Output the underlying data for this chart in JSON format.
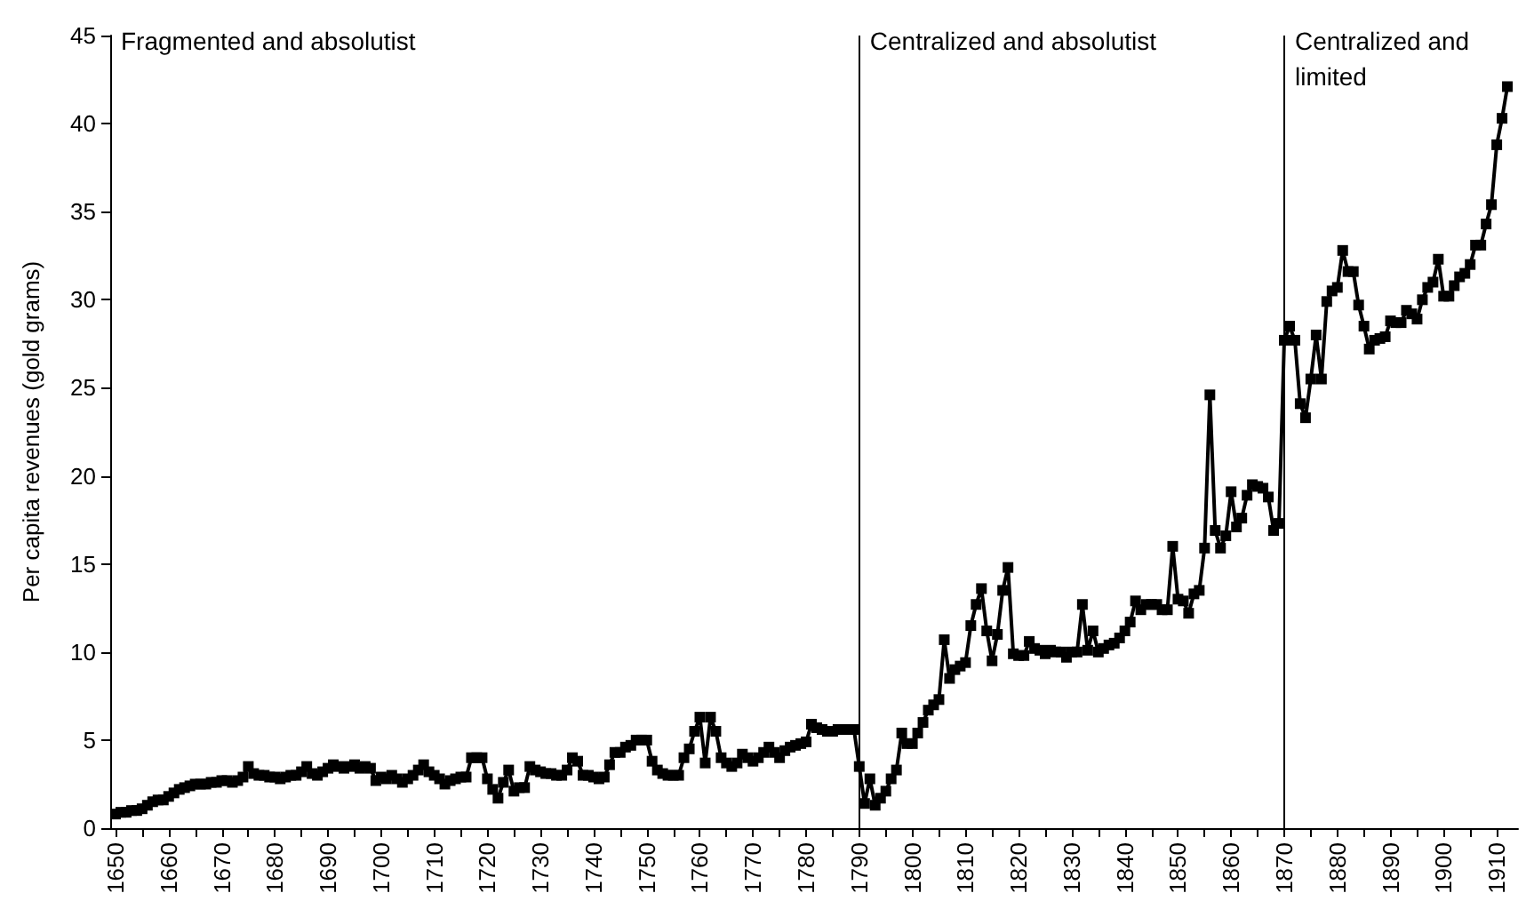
{
  "chart_data": {
    "type": "line",
    "ylabel": "Per capita revenues (gold grams)",
    "annotations": [
      "Fragmented and absolutist",
      "Centralized and absolutist",
      "Centralized and limited"
    ],
    "x": [
      1650,
      1651,
      1652,
      1653,
      1654,
      1655,
      1656,
      1657,
      1658,
      1659,
      1660,
      1661,
      1662,
      1663,
      1664,
      1665,
      1666,
      1667,
      1668,
      1669,
      1670,
      1671,
      1672,
      1673,
      1674,
      1675,
      1676,
      1677,
      1678,
      1679,
      1680,
      1681,
      1682,
      1683,
      1684,
      1685,
      1686,
      1687,
      1688,
      1689,
      1690,
      1691,
      1692,
      1693,
      1694,
      1695,
      1696,
      1697,
      1698,
      1699,
      1700,
      1701,
      1702,
      1703,
      1704,
      1705,
      1706,
      1707,
      1708,
      1709,
      1710,
      1711,
      1712,
      1713,
      1714,
      1715,
      1716,
      1717,
      1718,
      1719,
      1720,
      1721,
      1722,
      1723,
      1724,
      1725,
      1726,
      1727,
      1728,
      1729,
      1730,
      1731,
      1732,
      1733,
      1734,
      1735,
      1736,
      1737,
      1738,
      1739,
      1740,
      1741,
      1742,
      1743,
      1744,
      1745,
      1746,
      1747,
      1748,
      1749,
      1750,
      1751,
      1752,
      1753,
      1754,
      1755,
      1756,
      1757,
      1758,
      1759,
      1760,
      1761,
      1762,
      1763,
      1764,
      1765,
      1766,
      1767,
      1768,
      1769,
      1770,
      1771,
      1772,
      1773,
      1774,
      1775,
      1776,
      1777,
      1778,
      1779,
      1780,
      1781,
      1782,
      1783,
      1784,
      1785,
      1786,
      1787,
      1788,
      1789,
      1790,
      1791,
      1792,
      1793,
      1794,
      1795,
      1796,
      1797,
      1798,
      1799,
      1800,
      1801,
      1802,
      1803,
      1804,
      1805,
      1806,
      1807,
      1808,
      1809,
      1810,
      1811,
      1812,
      1813,
      1814,
      1815,
      1816,
      1817,
      1818,
      1819,
      1820,
      1821,
      1822,
      1823,
      1824,
      1825,
      1826,
      1827,
      1828,
      1829,
      1830,
      1831,
      1832,
      1833,
      1834,
      1835,
      1836,
      1837,
      1838,
      1839,
      1840,
      1841,
      1842,
      1843,
      1844,
      1845,
      1846,
      1847,
      1848,
      1849,
      1850,
      1851,
      1852,
      1853,
      1854,
      1855,
      1856,
      1857,
      1858,
      1859,
      1860,
      1861,
      1862,
      1863,
      1864,
      1865,
      1866,
      1867,
      1868,
      1869,
      1870,
      1871,
      1872,
      1873,
      1874,
      1875,
      1876,
      1877,
      1878,
      1879,
      1880,
      1881,
      1882,
      1883,
      1884,
      1885,
      1886,
      1887,
      1888,
      1889,
      1890,
      1891,
      1892,
      1893,
      1894,
      1895,
      1896,
      1897,
      1898,
      1899,
      1900,
      1901,
      1902,
      1903,
      1904,
      1905,
      1906,
      1907,
      1908,
      1909,
      1910,
      1911,
      1912
    ],
    "series": [
      {
        "color": "#000000",
        "values": [
          0.8,
          0.9,
          0.9,
          1.0,
          1.0,
          1.1,
          1.3,
          1.5,
          1.6,
          1.6,
          1.8,
          2.0,
          2.2,
          2.3,
          2.4,
          2.5,
          2.5,
          2.5,
          2.6,
          2.6,
          2.7,
          2.7,
          2.6,
          2.7,
          2.9,
          3.5,
          3.1,
          3.0,
          3.0,
          2.9,
          2.9,
          2.8,
          2.9,
          3.0,
          3.0,
          3.2,
          3.5,
          3.1,
          3.0,
          3.2,
          3.4,
          3.6,
          3.5,
          3.4,
          3.5,
          3.6,
          3.4,
          3.5,
          3.4,
          2.7,
          2.9,
          2.8,
          3.0,
          2.8,
          2.6,
          2.8,
          3.0,
          3.3,
          3.6,
          3.2,
          3.0,
          2.8,
          2.5,
          2.7,
          2.8,
          2.9,
          2.9,
          4.0,
          4.0,
          4.0,
          2.8,
          2.2,
          1.7,
          2.6,
          3.3,
          2.1,
          2.3,
          2.3,
          3.5,
          3.3,
          3.2,
          3.1,
          3.1,
          3.0,
          3.0,
          3.3,
          4.0,
          3.8,
          3.0,
          3.0,
          2.9,
          2.8,
          2.9,
          3.6,
          4.3,
          4.3,
          4.6,
          4.7,
          5.0,
          5.0,
          5.0,
          3.8,
          3.3,
          3.1,
          3.0,
          3.0,
          3.0,
          4.0,
          4.5,
          5.5,
          6.3,
          3.7,
          6.3,
          5.5,
          4.0,
          3.7,
          3.5,
          3.7,
          4.2,
          4.0,
          3.8,
          4.0,
          4.3,
          4.6,
          4.3,
          4.0,
          4.4,
          4.6,
          4.7,
          4.8,
          4.9,
          5.9,
          5.7,
          5.6,
          5.5,
          5.5,
          5.6,
          5.6,
          5.6,
          5.6,
          3.5,
          1.4,
          2.8,
          1.3,
          1.7,
          2.1,
          2.8,
          3.3,
          5.4,
          4.8,
          4.8,
          5.4,
          6.0,
          6.7,
          7.0,
          7.3,
          10.7,
          8.5,
          9.0,
          9.2,
          9.4,
          11.5,
          12.7,
          13.6,
          11.2,
          9.5,
          11.0,
          13.5,
          14.8,
          9.9,
          9.8,
          9.8,
          10.6,
          10.2,
          10.1,
          9.9,
          10.1,
          10.0,
          10.0,
          9.7,
          10.0,
          10.0,
          12.7,
          10.1,
          11.2,
          10.0,
          10.2,
          10.4,
          10.5,
          10.8,
          11.2,
          11.7,
          12.9,
          12.4,
          12.7,
          12.7,
          12.7,
          12.4,
          12.4,
          16.0,
          13.0,
          12.9,
          12.2,
          13.3,
          13.5,
          15.9,
          24.6,
          16.9,
          15.9,
          16.6,
          19.1,
          17.1,
          17.6,
          18.9,
          19.5,
          19.4,
          19.3,
          18.8,
          16.9,
          17.3,
          27.7,
          28.5,
          27.7,
          24.1,
          23.3,
          25.5,
          28.0,
          25.5,
          29.9,
          30.5,
          30.7,
          32.8,
          31.6,
          31.6,
          29.7,
          28.5,
          27.2,
          27.7,
          27.8,
          27.9,
          28.8,
          28.7,
          28.7,
          29.4,
          29.2,
          28.9,
          30.0,
          30.7,
          31.0,
          32.3,
          30.2,
          30.2,
          30.8,
          31.3,
          31.5,
          32.0,
          33.1,
          33.1,
          34.3,
          35.4,
          38.8,
          40.3,
          42.1
        ]
      }
    ],
    "xlim": [
      1649,
      1914
    ],
    "xticks": [
      1650,
      {
        "value": 1655,
        "label": null
      },
      1660,
      {
        "value": 1665,
        "label": null
      },
      1670,
      {
        "value": 1675,
        "label": null
      },
      1680,
      {
        "value": 1685,
        "label": null
      },
      1690,
      {
        "value": 1695,
        "label": null
      },
      1700,
      {
        "value": 1705,
        "label": null
      },
      1710,
      {
        "value": 1715,
        "label": null
      },
      1720,
      {
        "value": 1725,
        "label": null
      },
      1730,
      {
        "value": 1735,
        "label": null
      },
      1740,
      {
        "value": 1745,
        "label": null
      },
      1750,
      {
        "value": 1755,
        "label": null
      },
      1760,
      {
        "value": 1765,
        "label": null
      },
      1770,
      {
        "value": 1775,
        "label": null
      },
      1780,
      {
        "value": 1785,
        "label": null
      },
      1790,
      {
        "value": 1795,
        "label": null
      },
      1800,
      {
        "value": 1805,
        "label": null
      },
      1810,
      {
        "value": 1815,
        "label": null
      },
      1820,
      {
        "value": 1825,
        "label": null
      },
      1830,
      {
        "value": 1835,
        "label": null
      },
      1840,
      {
        "value": 1845,
        "label": null
      },
      1850,
      {
        "value": 1855,
        "label": null
      },
      1860,
      {
        "value": 1865,
        "label": null
      },
      1870,
      {
        "value": 1875,
        "label": null
      },
      1880,
      {
        "value": 1885,
        "label": null
      },
      1890,
      {
        "value": 1895,
        "label": null
      },
      1900,
      {
        "value": 1905,
        "label": null
      },
      1910
    ],
    "ylim": [
      0,
      45
    ],
    "yticks": [
      0,
      5,
      10,
      15,
      20,
      25,
      30,
      35,
      40,
      45
    ],
    "ref_lines": [
      {
        "axis": "x",
        "value": 1790,
        "color": "#000000"
      },
      {
        "axis": "x",
        "value": 1870,
        "color": "#000000"
      }
    ],
    "grid": false,
    "legend": false,
    "marker": "square",
    "line_style": "solid"
  }
}
